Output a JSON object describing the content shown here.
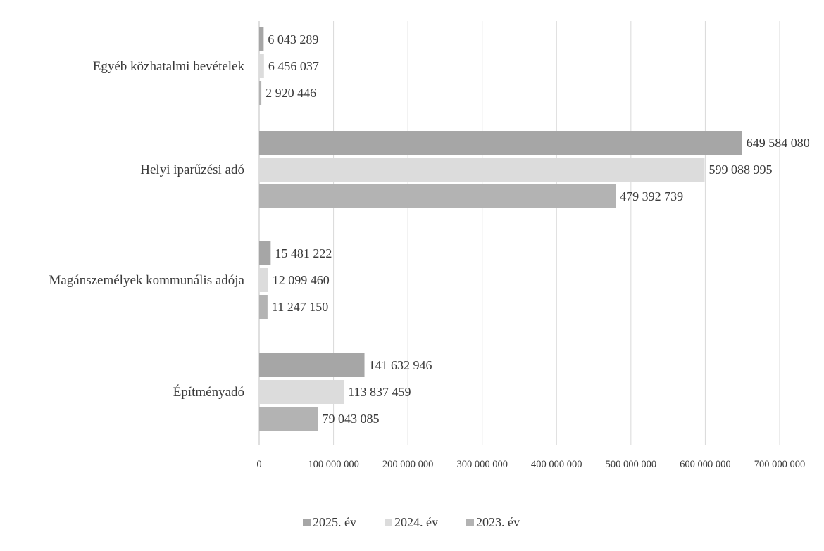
{
  "chart_data": {
    "type": "bar",
    "orientation": "horizontal",
    "title": "",
    "xlabel": "",
    "ylabel": "",
    "categories": [
      "Egyéb közhatalmi bevételek",
      "Helyi iparűzési adó",
      "Magánszemélyek kommunális adója",
      "Építményadó"
    ],
    "series": [
      {
        "name": "2025. év",
        "color": "#a6a6a6",
        "values": [
          6043289,
          649584080,
          15481222,
          141632946
        ],
        "labels": [
          "6 043 289",
          "649 584 080",
          "15 481 222",
          "141 632 946"
        ]
      },
      {
        "name": "2024. év",
        "color": "#dcdcdc",
        "values": [
          6456037,
          599088995,
          12099460,
          113837459
        ],
        "labels": [
          "6 456 037",
          "599 088 995",
          "12 099 460",
          "113 837 459"
        ]
      },
      {
        "name": "2023. év",
        "color": "#b3b3b3",
        "values": [
          2920446,
          479392739,
          11247150,
          79043085
        ],
        "labels": [
          "2 920 446",
          "479 392 739",
          "11 247 150",
          "79 043 085"
        ]
      }
    ],
    "xlim": [
      0,
      700000000
    ],
    "xticks": [
      0,
      100000000,
      200000000,
      300000000,
      400000000,
      500000000,
      600000000,
      700000000
    ],
    "xtick_labels": [
      "0",
      "100 000 000",
      "200 000 000",
      "300 000 000",
      "400 000 000",
      "500 000 000",
      "600 000 000",
      "700 000 000"
    ],
    "grid": true,
    "legend_position": "bottom"
  }
}
